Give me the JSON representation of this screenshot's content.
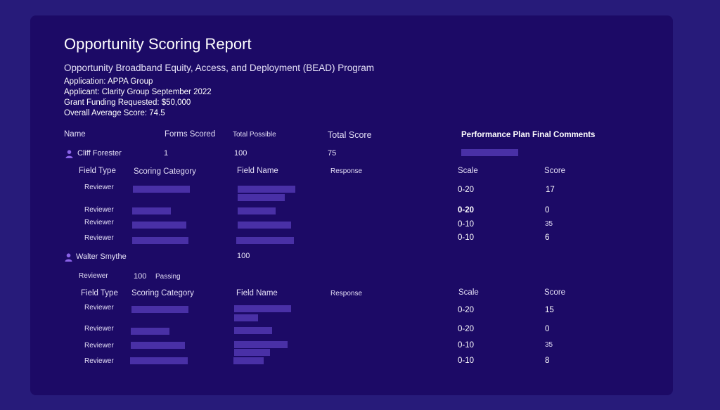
{
  "report": {
    "title": "Opportunity Scoring Report",
    "subtitle": "Opportunity Broadband Equity, Access, and Deployment (BEAD) Program",
    "application": "Application: APPA Group",
    "applicant": "Applicant: Clarity Group September 2022",
    "grant": "Grant Funding Requested:  $50,000",
    "average": "Overall Average Score: 74.5"
  },
  "summary_headers": {
    "name": "Name",
    "forms_scored": "Forms Scored",
    "total_possible": "Total Possible",
    "total_score": "Total Score",
    "comments": "Performance Plan Final Comments"
  },
  "detail_headers": {
    "field_type": "Field Type",
    "scoring_category": "Scoring Category",
    "field_name": "Field Name",
    "response": "Response",
    "scale": "Scale",
    "score": "Score"
  },
  "reviewer1": {
    "name": "Cliff Forester",
    "forms_scored": "1",
    "total_possible": "100",
    "total_score": "75",
    "rows": [
      {
        "field_type": "Reviewer",
        "scale": "0-20",
        "score": "17"
      },
      {
        "field_type": "Reviewer",
        "scale": "0-20",
        "score": "0"
      },
      {
        "field_type": "Reviewer",
        "scale": "0-10",
        "score": "35"
      },
      {
        "field_type": "Reviewer",
        "scale": "0-10",
        "score": "6"
      }
    ]
  },
  "reviewer2": {
    "name": "Walter Smythe",
    "total_possible": "100",
    "sub_role": "Reviewer",
    "sub_score": "100",
    "sub_status": "Passing",
    "rows": [
      {
        "field_type": "Reviewer",
        "scale": "0-20",
        "score": "15"
      },
      {
        "field_type": "Reviewer",
        "scale": "0-20",
        "score": "0"
      },
      {
        "field_type": "Reviewer",
        "scale": "0-10",
        "score": "35"
      },
      {
        "field_type": "Reviewer",
        "scale": "0-10",
        "score": "8"
      }
    ]
  },
  "icons": {
    "person": "person-icon"
  },
  "colors": {
    "background": "#271b7a",
    "card": "#1c0a66",
    "placeholder": "#4930a6",
    "icon": "#8a63e8"
  }
}
